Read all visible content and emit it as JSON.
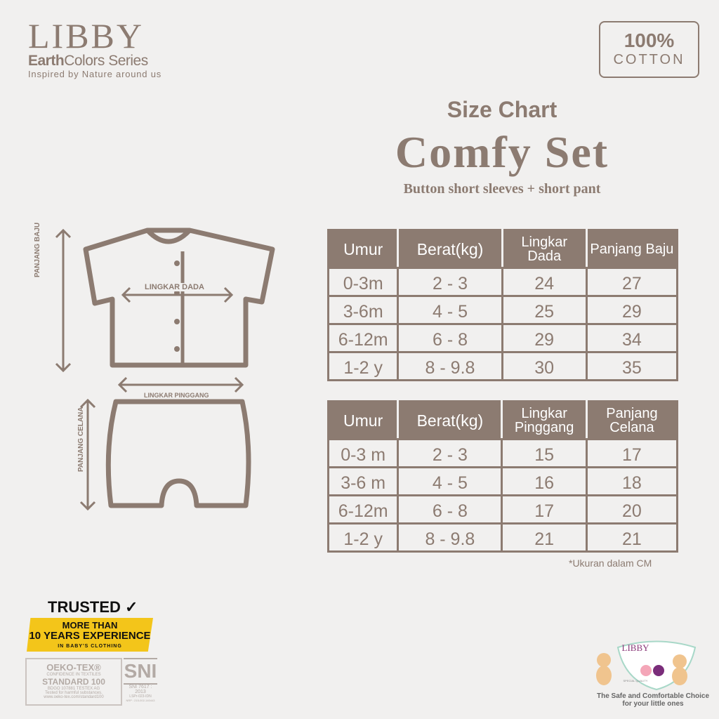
{
  "brand": {
    "logo": "LIBBY",
    "series_bold": "Earth",
    "series_rest": "Colors Series",
    "tagline": "Inspired by Nature around us"
  },
  "badge": {
    "percent": "100%",
    "label": "COTTON"
  },
  "header": {
    "subtitle": "Size Chart",
    "title": "Comfy Set",
    "description": "Button short sleeves + short pant"
  },
  "diagram": {
    "shirt_width": "LINGKAR DADA",
    "shirt_length": "PANJANG BAJU",
    "pant_waist": "LINGKAR PINGGANG",
    "pant_length": "PANJANG CELANA"
  },
  "top_table": {
    "headers": [
      "Umur",
      "Berat(kg)",
      "Lingkar Dada",
      "Panjang Baju"
    ],
    "rows": [
      [
        "0-3m",
        "2 - 3",
        "24",
        "27"
      ],
      [
        "3-6m",
        "4 - 5",
        "25",
        "29"
      ],
      [
        "6-12m",
        "6 - 8",
        "29",
        "34"
      ],
      [
        "1-2 y",
        "8 - 9.8",
        "30",
        "35"
      ]
    ]
  },
  "bottom_table": {
    "headers": [
      "Umur",
      "Berat(kg)",
      "Lingkar Pinggang",
      "Panjang Celana"
    ],
    "rows": [
      [
        "0-3 m",
        "2 - 3",
        "15",
        "17"
      ],
      [
        "3-6 m",
        "4 - 5",
        "16",
        "18"
      ],
      [
        "6-12m",
        "6 - 8",
        "17",
        "20"
      ],
      [
        "1-2 y",
        "8 - 9.8",
        "21",
        "21"
      ]
    ]
  },
  "note": "*Ukuran dalam CM",
  "trust": {
    "trusted": "TRUSTED",
    "line1": "MORE THAN",
    "line2": "10 YEARS EXPERIENCE",
    "line3": "IN BABY'S CLOTHING"
  },
  "oeko": {
    "name": "OEKO-TEX®",
    "sub": "CONFIDENCE IN TEXTILES",
    "standard": "STANDARD 100",
    "code": "BDGO 107881 TESTEX AG",
    "tested": "Tested for harmful substances.",
    "url": "www.oeko-tex.com/standard100"
  },
  "sni": {
    "logo": "SNI",
    "code": "SNI 7617 : 2013",
    "lsp": "LSPr-023-IDN",
    "nrp": "NRP : 215-002-140443"
  },
  "footer_logo": {
    "logo": "LIBBY",
    "quality": "SPECIAL QUALITY",
    "slogan1": "The Safe and Comfortable Choice",
    "slogan2": "for your little ones"
  },
  "colors": {
    "primary": "#8c7b71",
    "ribbon": "#f3c51a",
    "background": "#f1f0ef"
  }
}
